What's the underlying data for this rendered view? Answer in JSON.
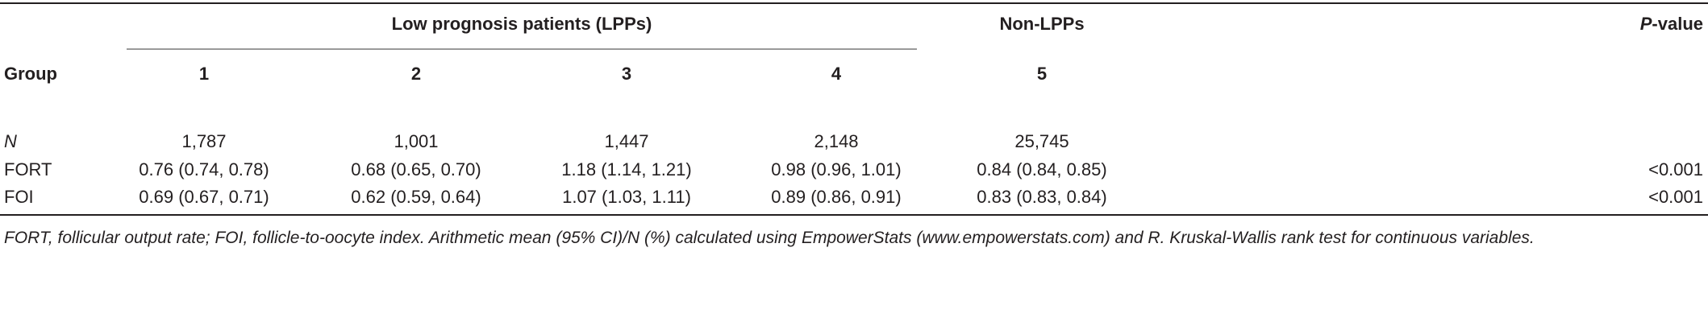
{
  "header": {
    "group_span_label": "Low prognosis patients (LPPs)",
    "non_lpp_label": "Non-LPPs",
    "pvalue_label_p": "P",
    "pvalue_label_rest": "-value",
    "group_label": "Group",
    "group_numbers": [
      "1",
      "2",
      "3",
      "4",
      "5"
    ]
  },
  "rows": [
    {
      "label": "N",
      "values": [
        "1,787",
        "1,001",
        "1,447",
        "2,148",
        "25,745"
      ],
      "pvalue": ""
    },
    {
      "label": "FORT",
      "values": [
        "0.76 (0.74, 0.78)",
        "0.68 (0.65, 0.70)",
        "1.18 (1.14, 1.21)",
        "0.98 (0.96, 1.01)",
        "0.84 (0.84, 0.85)"
      ],
      "pvalue": "<0.001"
    },
    {
      "label": "FOI",
      "values": [
        "0.69 (0.67, 0.71)",
        "0.62 (0.59, 0.64)",
        "1.07 (1.03, 1.11)",
        "0.89 (0.86, 0.91)",
        "0.83 (0.83, 0.84)"
      ],
      "pvalue": "<0.001"
    }
  ],
  "footnote": "FORT, follicular output rate; FOI, follicle-to-oocyte index. Arithmetic mean (95% CI)/N (%) calculated using EmpowerStats (www.empowerstats.com) and R. Kruskal-Wallis rank test for continuous variables."
}
